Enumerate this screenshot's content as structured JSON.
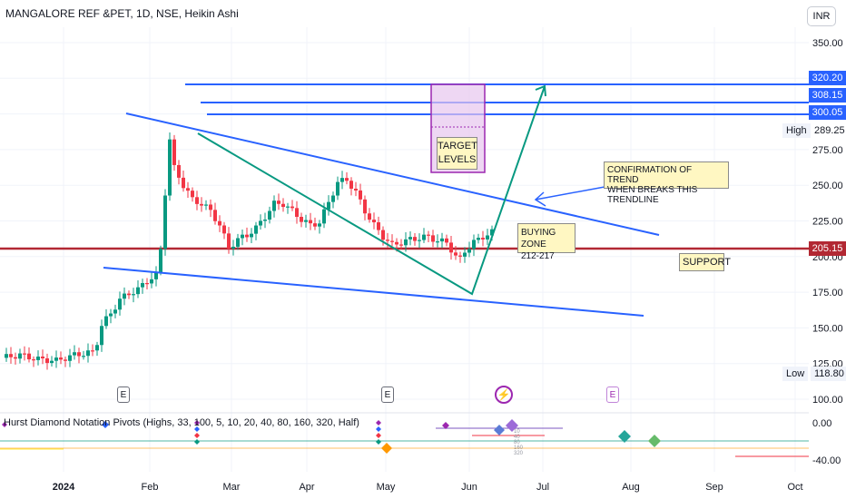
{
  "header": {
    "title": "MANGALORE REF &PET, 1D, NSE, Heikin Ashi",
    "currency": "INR"
  },
  "price_tags": {
    "p320": "320.20",
    "p308": "308.15",
    "p300": "300.05",
    "support": "205.15",
    "high_label": "High",
    "high_value": "289.25",
    "low_label": "Low",
    "low_value": "118.80"
  },
  "annotations": {
    "target": "TARGET\nLEVELS",
    "confirmation": "CONFIRMATION OF TREND\nWHEN BREAKS THIS TRENDLINE",
    "buying_zone": "BUYING ZONE\n212-217",
    "support": "SUPPORT"
  },
  "events": {
    "earnings_label": "E"
  },
  "indicator": {
    "label": "Hurst Diamond Notation Pivots (Highs, 33, 100, 5, 10, 20, 40, 80, 160, 320, Half)",
    "yticks": [
      "0.00",
      "-40.00"
    ],
    "small_labels": [
      "10",
      "40",
      "80",
      "160",
      "320"
    ]
  },
  "colors": {
    "up": "#089981",
    "down": "#f23645",
    "trendline": "#2962ff",
    "triangle": "#089981",
    "support_line": "#b22833",
    "target_box": "#9c27b0"
  },
  "chart_data": {
    "type": "candlestick",
    "title": "MANGALORE REF &PET, 1D, NSE, Heikin Ashi",
    "yaxis_ticks": [
      350,
      325,
      300,
      275,
      250,
      225,
      200,
      175,
      150,
      125,
      100
    ],
    "y_tick_labels": [
      "350.00",
      "325.00",
      "300.00",
      "275.00",
      "250.00",
      "225.00",
      "200.00",
      "175.00",
      "150.00",
      "125.00",
      "100.00"
    ],
    "xaxis_ticks": [
      "2024",
      "Feb",
      "Mar",
      "Apr",
      "May",
      "Jun",
      "Jul",
      "Aug",
      "Sep",
      "Oct"
    ],
    "ylim": [
      95,
      360
    ],
    "horizontal_levels": [
      320.2,
      308.15,
      300.05,
      205.15
    ],
    "high": 289.25,
    "low": 118.8,
    "price_path": [
      [
        0,
        129
      ],
      [
        4,
        131
      ],
      [
        8,
        128
      ],
      [
        12,
        127
      ],
      [
        16,
        131
      ],
      [
        20,
        133
      ],
      [
        21,
        140
      ],
      [
        22,
        152
      ],
      [
        24,
        160
      ],
      [
        26,
        170
      ],
      [
        28,
        174
      ],
      [
        30,
        177
      ],
      [
        32,
        183
      ],
      [
        34,
        187
      ],
      [
        35,
        205
      ],
      [
        36,
        245
      ],
      [
        37,
        282
      ],
      [
        38,
        262
      ],
      [
        40,
        250
      ],
      [
        42,
        240
      ],
      [
        44,
        237
      ],
      [
        46,
        232
      ],
      [
        48,
        222
      ],
      [
        50,
        206
      ],
      [
        52,
        212
      ],
      [
        54,
        215
      ],
      [
        56,
        220
      ],
      [
        58,
        228
      ],
      [
        60,
        237
      ],
      [
        62,
        237
      ],
      [
        64,
        232
      ],
      [
        66,
        226
      ],
      [
        68,
        222
      ],
      [
        70,
        224
      ],
      [
        72,
        238
      ],
      [
        74,
        252
      ],
      [
        76,
        254
      ],
      [
        78,
        245
      ],
      [
        80,
        232
      ],
      [
        82,
        222
      ],
      [
        84,
        214
      ],
      [
        86,
        208
      ],
      [
        88,
        210
      ],
      [
        90,
        212
      ],
      [
        92,
        213
      ],
      [
        94,
        214
      ],
      [
        96,
        211
      ],
      [
        98,
        210
      ],
      [
        100,
        200
      ],
      [
        101,
        198
      ],
      [
        102,
        204
      ],
      [
        104,
        210
      ],
      [
        106,
        214
      ],
      [
        108,
        217
      ]
    ]
  }
}
